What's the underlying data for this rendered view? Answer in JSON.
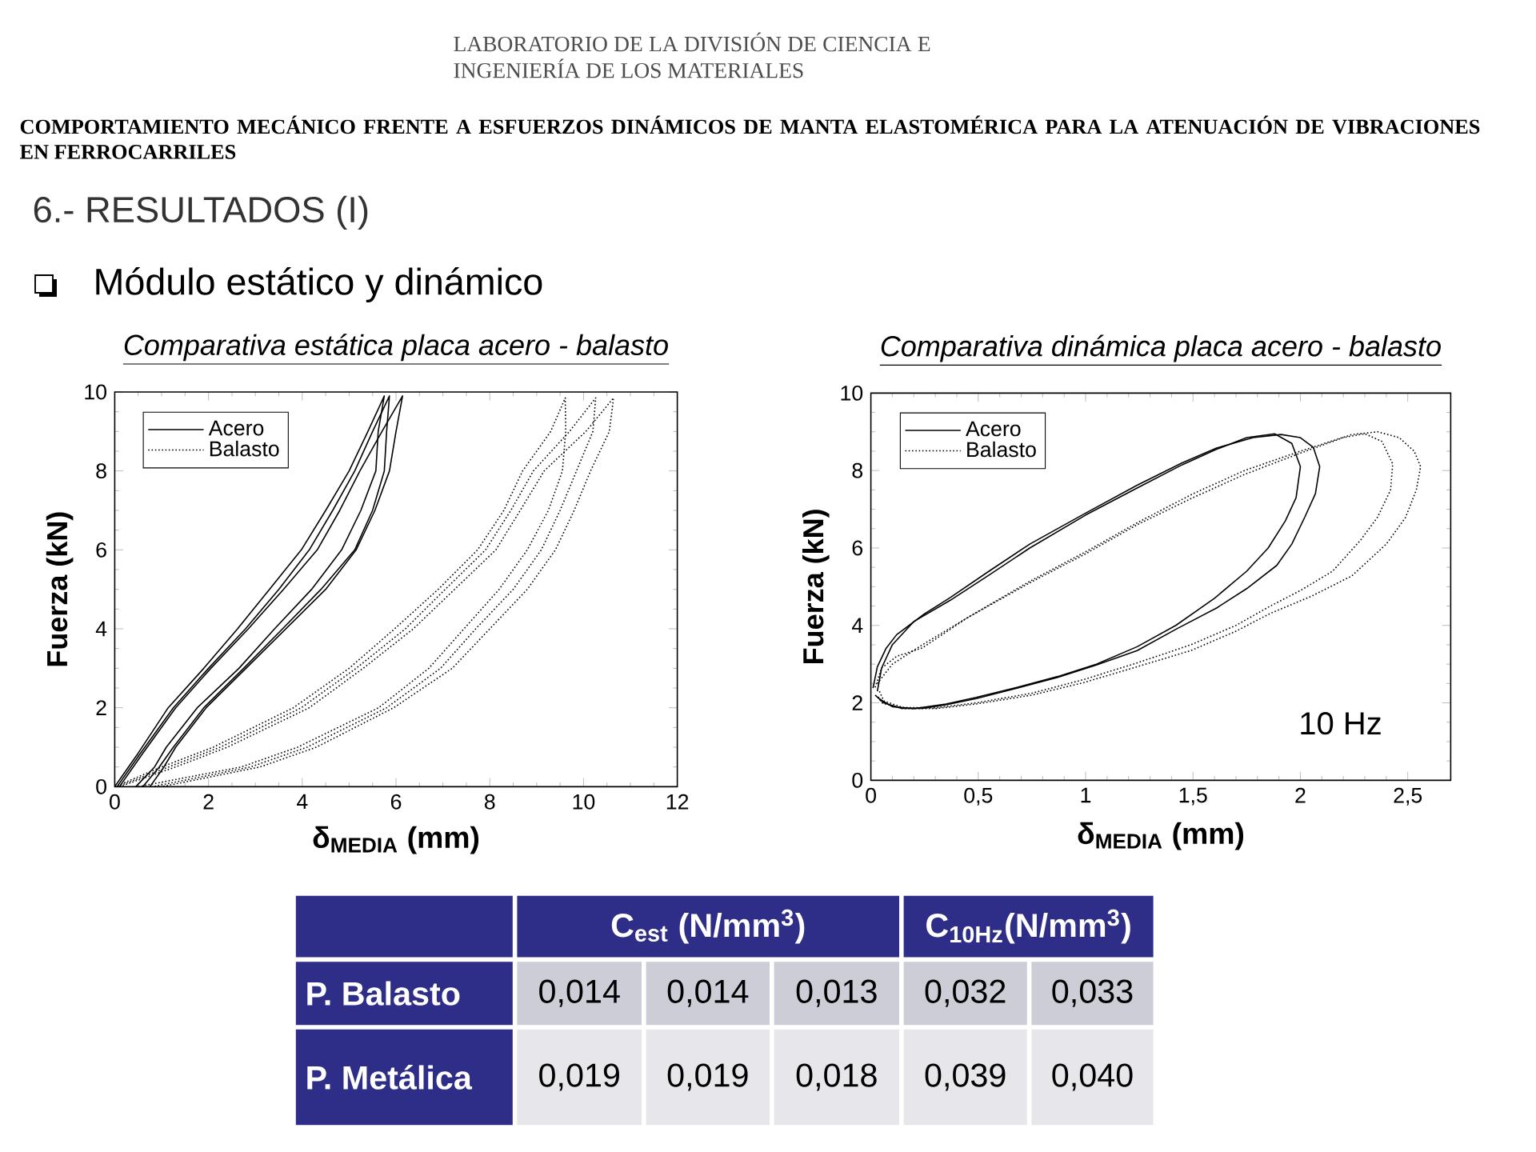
{
  "chart_data": [
    {
      "type": "other",
      "title": "COMPORTAMIENTO MECÁNICO FRENTE A ESFUERZOS DINÁMICOS DE MANTA ELASTOMÉRICA PARA LA ATENUACIÓN DE VIBRACIONES EN FERROCARRILES",
      "subtitle": "6.- RESULTADOS (I)",
      "annotations": [
        "LABORATORIO DE LA DIVISIÓN DE CIENCIA E INGENIERÍA DE LOS MATERIALES",
        "Módulo estático y dinámico"
      ]
    },
    {
      "type": "line",
      "title": "Comparativa estática placa acero - balasto",
      "xlabel": "δ$_{MEDIA}$ (mm)",
      "ylabel": "Fuerza (kN)",
      "xlim": [
        0,
        12
      ],
      "ylim": [
        0,
        10
      ],
      "xticks": [
        0,
        2,
        4,
        6,
        8,
        10,
        12
      ],
      "yticks": [
        0,
        2,
        4,
        6,
        8,
        10
      ],
      "legend": "top left",
      "series": [
        {
          "name": "Acero",
          "color": "#000000",
          "line_style": "solid",
          "x": [
            0,
            0.5,
            1.14,
            1.9,
            2.62,
            3.3,
            3.98,
            4.5,
            5.0,
            5.4,
            5.75,
            5.62,
            5.57,
            5.25,
            4.84,
            4.2,
            3.41,
            2.65,
            1.76,
            1.1,
            0.85,
            0.45
          ],
          "values": [
            0,
            0.85,
            2,
            3,
            4,
            5,
            6,
            7,
            8,
            9,
            9.9,
            9,
            8,
            7,
            6,
            5,
            4,
            3,
            2,
            1,
            0.5,
            0
          ]
        },
        {
          "color": "#000000",
          "line_style": "solid",
          "x": [
            0.05,
            0.55,
            1.25,
            2.0,
            2.79,
            3.5,
            4.15,
            4.65,
            5.12,
            5.5,
            5.86,
            5.8,
            5.75,
            5.5,
            5.12,
            4.4,
            3.58,
            2.75,
            1.9,
            1.25,
            0.95,
            0.6
          ],
          "values": [
            0,
            0.85,
            2,
            3,
            4,
            5,
            6,
            7,
            8,
            9,
            9.9,
            9,
            8,
            7,
            6,
            5,
            4,
            3,
            2,
            1,
            0.5,
            0
          ]
        },
        {
          "color": "#000000",
          "line_style": "solid",
          "x": [
            0.1,
            0.6,
            1.3,
            2.05,
            2.85,
            3.6,
            4.32,
            4.8,
            5.23,
            5.7,
            6.14,
            6.0,
            5.86,
            5.55,
            5.15,
            4.5,
            3.65,
            2.8,
            1.95,
            1.3,
            1.05,
            0.75
          ],
          "values": [
            0,
            0.85,
            2,
            3,
            4,
            5,
            6,
            7,
            8,
            9,
            9.9,
            9,
            8,
            7,
            6,
            5,
            4,
            3,
            2,
            1,
            0.5,
            0
          ]
        },
        {
          "name": "Balasto",
          "color": "#000000",
          "line_style": "dotted",
          "x": [
            0,
            1.0,
            2.1,
            3.81,
            5.0,
            5.97,
            6.9,
            7.74,
            8.3,
            8.7,
            9.3,
            9.61,
            9.62,
            9.55,
            9.25,
            8.8,
            8.2,
            7.45,
            6.7,
            5.63,
            3.9,
            2.7,
            0.5
          ],
          "values": [
            0,
            0.5,
            1,
            2,
            3,
            4,
            5,
            6,
            7,
            8,
            9,
            9.85,
            9,
            8,
            7,
            6,
            5,
            4,
            3,
            2,
            1,
            0.5,
            0
          ]
        },
        {
          "color": "#000000",
          "line_style": "dotted",
          "x": [
            0.05,
            1.15,
            2.25,
            3.98,
            5.15,
            6.2,
            7.05,
            7.91,
            8.45,
            8.93,
            9.7,
            10.26,
            10.2,
            9.85,
            9.5,
            9.1,
            8.5,
            7.7,
            6.95,
            5.8,
            4.1,
            2.9,
            0.8
          ],
          "values": [
            0,
            0.5,
            1,
            2,
            3,
            4,
            5,
            6,
            7,
            8,
            9,
            9.85,
            9,
            8,
            7,
            6,
            5,
            4,
            3,
            2,
            1,
            0.5,
            0
          ]
        },
        {
          "color": "#000000",
          "line_style": "dotted",
          "x": [
            0.1,
            1.3,
            2.4,
            4.15,
            5.3,
            6.37,
            7.25,
            8.13,
            8.65,
            9.16,
            10.05,
            10.64,
            10.55,
            10.15,
            9.8,
            9.4,
            8.8,
            8.0,
            7.2,
            5.95,
            4.3,
            3.1,
            1.0
          ],
          "values": [
            0,
            0.5,
            1,
            2,
            3,
            4,
            5,
            6,
            7,
            8,
            9,
            9.85,
            9,
            8,
            7,
            6,
            5,
            4,
            3,
            2,
            1,
            0.5,
            0
          ]
        }
      ]
    },
    {
      "type": "line",
      "title": "Comparativa dinámica placa acero - balasto",
      "xlabel": "δ$_{MEDIA}$ (mm)",
      "ylabel": "Fuerza (kN)",
      "xlim": [
        0,
        2.7
      ],
      "ylim": [
        0,
        10
      ],
      "xticks": [
        0,
        {
          "value": 0.5,
          "label": "0,5"
        },
        1,
        {
          "value": 1.5,
          "label": "1,5"
        },
        2,
        {
          "value": 2.5,
          "label": "2,5"
        }
      ],
      "yticks": [
        0,
        2,
        4,
        6,
        8,
        10
      ],
      "legend": "top left",
      "annotations": [
        "10 Hz"
      ],
      "series": [
        {
          "name": "Acero",
          "color": "#000000",
          "line_style": "solid",
          "x": [
            0.01,
            0.03,
            0.07,
            0.12,
            0.25,
            0.37,
            0.55,
            0.74,
            1.0,
            1.24,
            1.45,
            1.61,
            1.78,
            1.91,
            2.0,
            2.06,
            2.09,
            2.07,
            2.02,
            1.96,
            1.89,
            1.75,
            1.61,
            1.42,
            1.24,
            1.05,
            0.87,
            0.68,
            0.49,
            0.35,
            0.24,
            0.14,
            0.06,
            0.02
          ],
          "values": [
            2.38,
            2.93,
            3.4,
            3.76,
            4.3,
            4.72,
            5.4,
            6.1,
            6.9,
            7.62,
            8.2,
            8.58,
            8.85,
            8.93,
            8.85,
            8.6,
            8.1,
            7.4,
            6.79,
            6.1,
            5.55,
            4.95,
            4.45,
            3.9,
            3.35,
            2.98,
            2.66,
            2.38,
            2.11,
            1.95,
            1.86,
            1.86,
            2.0,
            2.2
          ]
        },
        {
          "color": "#000000",
          "line_style": "solid",
          "x": [
            0.03,
            0.05,
            0.1,
            0.2,
            0.37,
            0.55,
            0.74,
            1.0,
            1.24,
            1.45,
            1.61,
            1.75,
            1.88,
            1.96,
            2.0,
            1.98,
            1.93,
            1.85,
            1.75,
            1.6,
            1.42,
            1.24,
            1.05,
            0.87,
            0.68,
            0.49,
            0.35,
            0.2,
            0.1,
            0.04
          ],
          "values": [
            2.3,
            2.9,
            3.5,
            4.1,
            4.65,
            5.3,
            6.0,
            6.85,
            7.55,
            8.15,
            8.55,
            8.85,
            8.95,
            8.7,
            8.1,
            7.3,
            6.7,
            6.0,
            5.4,
            4.7,
            4.0,
            3.45,
            3.0,
            2.68,
            2.4,
            2.14,
            1.97,
            1.85,
            1.9,
            2.1
          ]
        },
        {
          "name": "Balasto",
          "color": "#000000",
          "line_style": "dotted",
          "x": [
            0.02,
            0.05,
            0.12,
            0.24,
            0.45,
            0.74,
            1.0,
            1.24,
            1.5,
            1.74,
            2.0,
            2.24,
            2.36,
            2.46,
            2.53,
            2.56,
            2.54,
            2.49,
            2.4,
            2.24,
            2.05,
            1.86,
            1.7,
            1.49,
            1.25,
            0.99,
            0.75,
            0.49,
            0.3,
            0.15,
            0.05,
            0.03
          ],
          "values": [
            2.4,
            2.9,
            3.2,
            3.42,
            4.2,
            5.14,
            5.9,
            6.65,
            7.4,
            8.0,
            8.5,
            8.93,
            9.0,
            8.85,
            8.5,
            8.1,
            7.5,
            6.79,
            6.1,
            5.28,
            4.75,
            4.31,
            3.85,
            3.35,
            2.95,
            2.52,
            2.2,
            1.97,
            1.85,
            1.85,
            2.0,
            2.2
          ]
        },
        {
          "color": "#000000",
          "line_style": "dotted",
          "x": [
            0.03,
            0.1,
            0.24,
            0.45,
            0.74,
            1.0,
            1.24,
            1.5,
            1.74,
            2.0,
            2.2,
            2.3,
            2.38,
            2.43,
            2.42,
            2.36,
            2.28,
            2.15,
            2.0,
            1.86,
            1.7,
            1.49,
            1.25,
            0.99,
            0.75,
            0.49,
            0.3,
            0.15,
            0.06,
            0.04
          ],
          "values": [
            2.5,
            3.0,
            3.5,
            4.2,
            5.1,
            5.85,
            6.6,
            7.3,
            7.9,
            8.45,
            8.85,
            8.95,
            8.75,
            8.17,
            7.5,
            6.8,
            6.2,
            5.4,
            4.9,
            4.5,
            4.0,
            3.5,
            3.05,
            2.6,
            2.25,
            2.0,
            1.87,
            1.88,
            2.05,
            2.3
          ]
        }
      ]
    },
    {
      "type": "other",
      "categories": [
        "C$_{est}$ (N/mm$^{3}$)",
        null,
        null,
        "C$_{10Hz}$(N/mm$^{3}$)",
        null
      ],
      "y_categories": [
        "P. Balasto",
        "P. Metálica"
      ],
      "cell_labels": [
        [
          "0,014",
          "0,014",
          "0,013",
          "0,032",
          "0,033"
        ],
        [
          "0,019",
          "0,019",
          "0,018",
          "0,039",
          "0,040"
        ]
      ]
    }
  ]
}
